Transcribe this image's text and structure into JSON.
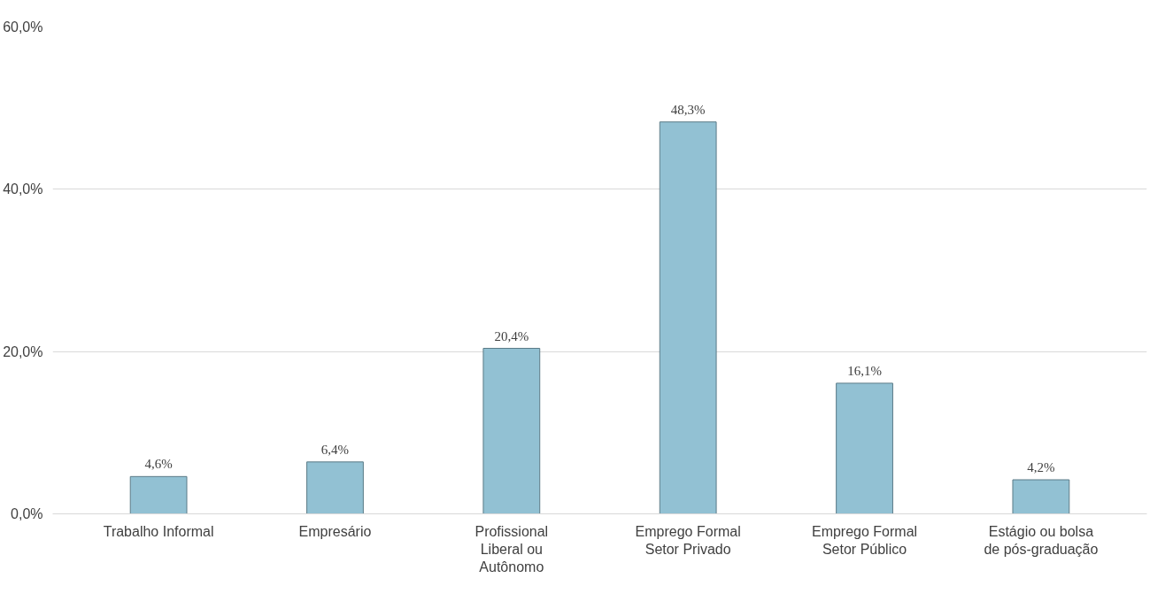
{
  "chart_data": {
    "type": "bar",
    "categories": [
      "Trabalho Informal",
      "Empresário",
      "Profissional Liberal ou Autônomo",
      "Emprego Formal Setor Privado",
      "Emprego Formal Setor Público",
      "Estágio ou bolsa de pós-graduação"
    ],
    "values": [
      4.6,
      6.4,
      20.4,
      48.3,
      16.1,
      4.2
    ],
    "value_labels": [
      "4,6%",
      "6,4%",
      "20,4%",
      "48,3%",
      "16,1%",
      "4,2%"
    ],
    "color": "#92c1d3",
    "ylim": [
      0,
      60
    ],
    "yticks": [
      {
        "value": 0,
        "label": "0,0%"
      },
      {
        "value": 20,
        "label": "20,0%"
      },
      {
        "value": 40,
        "label": "40,0%"
      },
      {
        "value": 60,
        "label": "60,0%"
      }
    ],
    "grid": "y"
  }
}
